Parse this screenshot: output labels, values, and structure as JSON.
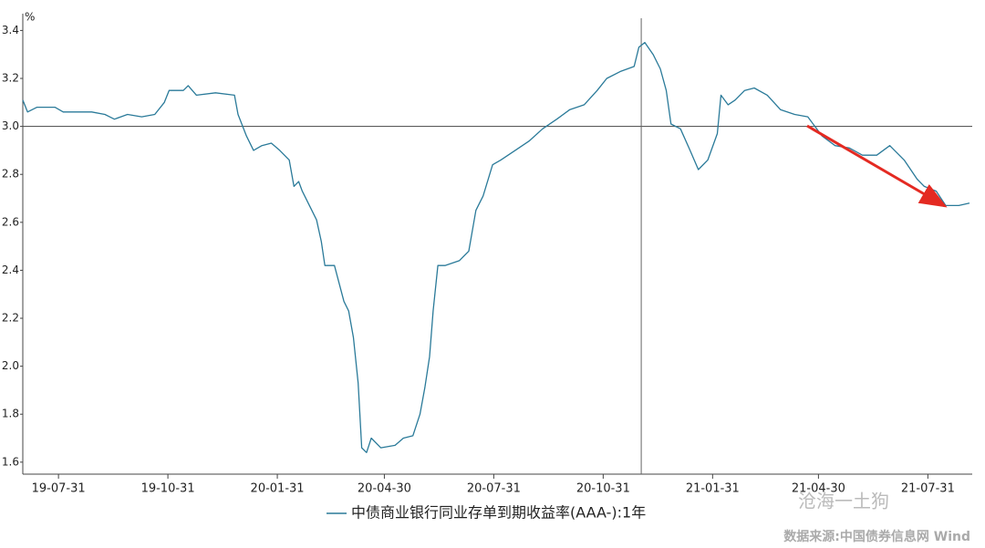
{
  "chart_data": {
    "type": "line",
    "y_unit": "%",
    "x": [
      "19-07-01",
      "19-07-05",
      "19-07-13",
      "19-07-28",
      "19-08-04",
      "19-08-16",
      "19-08-28",
      "19-09-08",
      "19-09-16",
      "19-09-27",
      "19-10-09",
      "19-10-20",
      "19-10-28",
      "19-11-01",
      "19-11-13",
      "19-11-17",
      "19-11-24",
      "19-12-10",
      "19-12-26",
      "19-12-29",
      "20-01-05",
      "20-01-11",
      "20-01-18",
      "20-01-26",
      "20-02-02",
      "20-02-10",
      "20-02-14",
      "20-02-18",
      "20-02-21",
      "20-02-29",
      "20-03-04",
      "20-03-08",
      "20-03-11",
      "20-03-19",
      "20-03-27",
      "20-03-31",
      "20-04-04",
      "20-04-08",
      "20-04-11",
      "20-04-15",
      "20-04-19",
      "20-04-27",
      "20-05-09",
      "20-05-16",
      "20-05-24",
      "20-05-30",
      "20-06-03",
      "20-06-07",
      "20-06-10",
      "20-06-14",
      "20-06-20",
      "20-07-02",
      "20-07-10",
      "20-07-16",
      "20-07-22",
      "20-07-30",
      "20-08-06",
      "20-08-18",
      "20-08-30",
      "20-09-10",
      "20-09-22",
      "20-10-03",
      "20-10-15",
      "20-10-26",
      "20-11-03",
      "20-11-15",
      "20-11-26",
      "20-11-30",
      "20-12-05",
      "20-12-12",
      "20-12-18",
      "20-12-23",
      "20-12-27",
      "21-01-04",
      "21-01-12",
      "21-01-19",
      "21-01-27",
      "21-02-04",
      "21-02-07",
      "21-02-13",
      "21-02-19",
      "21-02-27",
      "21-03-07",
      "21-03-18",
      "21-03-29",
      "21-04-10",
      "21-04-21",
      "21-05-03",
      "21-05-14",
      "21-05-26",
      "21-06-06",
      "21-06-18",
      "21-06-29",
      "21-07-11",
      "21-07-22",
      "21-07-28",
      "21-08-07",
      "21-08-15",
      "21-08-26",
      "21-09-04"
    ],
    "series": [
      {
        "name": "中债商业银行同业存单到期收益率(AAA-):1年",
        "color": "#2a7a99",
        "values": [
          3.11,
          3.06,
          3.08,
          3.08,
          3.06,
          3.06,
          3.06,
          3.05,
          3.03,
          3.05,
          3.04,
          3.05,
          3.1,
          3.15,
          3.15,
          3.17,
          3.13,
          3.14,
          3.13,
          3.05,
          2.96,
          2.9,
          2.92,
          2.93,
          2.9,
          2.86,
          2.75,
          2.77,
          2.73,
          2.65,
          2.61,
          2.52,
          2.42,
          2.42,
          2.27,
          2.23,
          2.12,
          1.93,
          1.66,
          1.64,
          1.7,
          1.66,
          1.67,
          1.7,
          1.71,
          1.8,
          1.91,
          2.04,
          2.23,
          2.42,
          2.42,
          2.44,
          2.48,
          2.65,
          2.71,
          2.84,
          2.86,
          2.9,
          2.94,
          2.99,
          3.03,
          3.07,
          3.09,
          3.15,
          3.2,
          3.23,
          3.25,
          3.33,
          3.35,
          3.3,
          3.24,
          3.15,
          3.01,
          2.99,
          2.9,
          2.82,
          2.86,
          2.97,
          3.13,
          3.09,
          3.11,
          3.15,
          3.16,
          3.13,
          3.07,
          3.05,
          3.04,
          2.96,
          2.92,
          2.91,
          2.88,
          2.88,
          2.92,
          2.86,
          2.78,
          2.75,
          2.73,
          2.67,
          2.67,
          2.68
        ]
      }
    ],
    "xlim": [
      "19-07-01",
      "21-09-04"
    ],
    "xticks": [
      "19-07-31",
      "19-10-31",
      "20-01-31",
      "20-04-30",
      "20-07-31",
      "20-10-31",
      "21-01-31",
      "21-04-30",
      "21-07-31"
    ],
    "ylim": [
      1.55,
      3.47
    ],
    "yticks": [
      1.6,
      1.8,
      {
        "value": 2,
        "label": "2.0"
      },
      2.2,
      2.4,
      2.6,
      2.8,
      {
        "value": 3,
        "label": "3.0"
      },
      3.2,
      3.4
    ],
    "reference_lines": {
      "y": 3,
      "x": "20-12-02"
    },
    "watermark": "沧海一土狗",
    "source": "数据来源:中国债券信息网 Wind"
  }
}
